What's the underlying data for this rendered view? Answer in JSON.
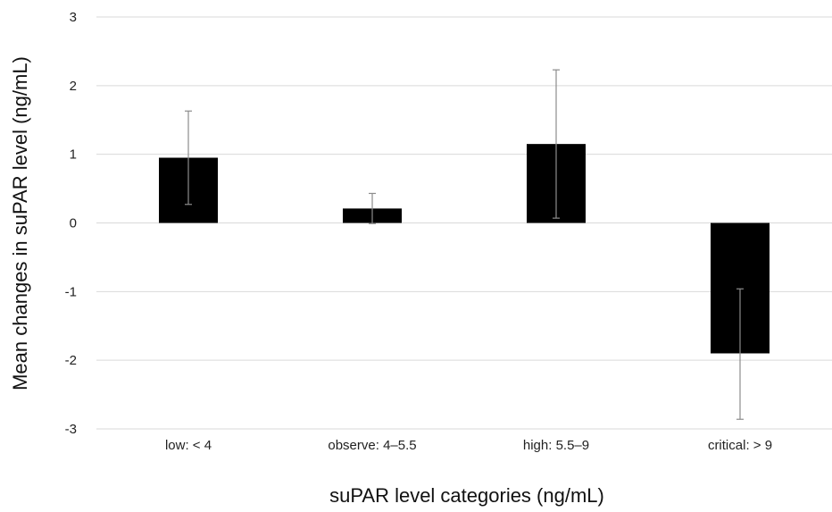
{
  "chart_data": {
    "type": "bar",
    "title": "",
    "xlabel": "suPAR level categories (ng/mL)",
    "ylabel": "Mean changes in suPAR level  (ng/mL)",
    "categories": [
      "low: < 4",
      "observe: 4–5.5",
      "high: 5.5–9",
      "critical: > 9"
    ],
    "values": [
      0.95,
      0.21,
      1.15,
      -1.9
    ],
    "error_low": [
      0.27,
      -0.01,
      0.07,
      -2.86
    ],
    "error_high": [
      1.63,
      0.43,
      2.23,
      -0.96
    ],
    "ylim": [
      -3,
      3
    ],
    "yticks": [
      "-3",
      "-2",
      "-1",
      "0",
      "1",
      "2",
      "3"
    ],
    "grid": true,
    "legend": "none",
    "bar_color": "#000000",
    "grid_color": "#d9d9d9",
    "error_bar_color": "#8c8c8c"
  }
}
